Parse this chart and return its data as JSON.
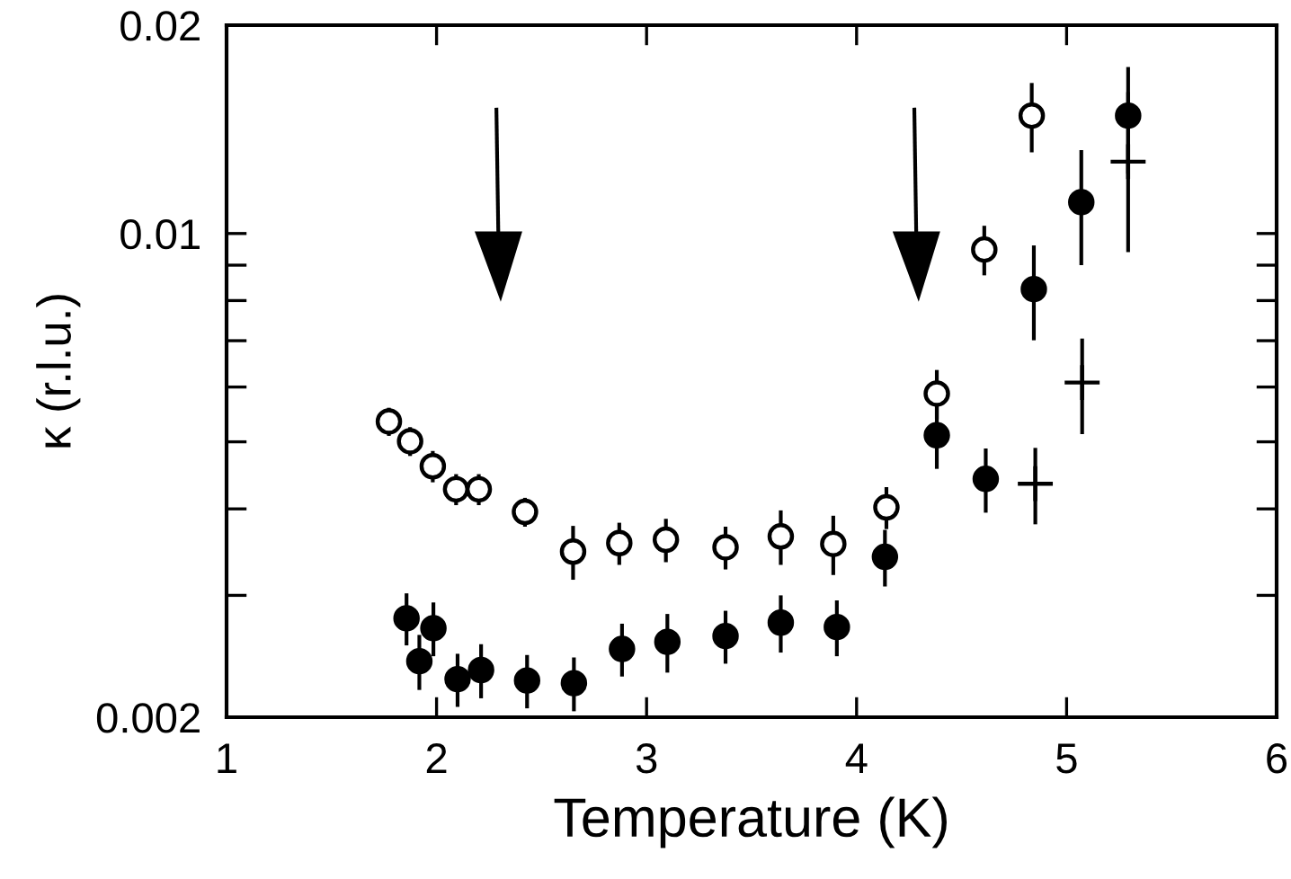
{
  "chart_data": {
    "type": "scatter",
    "xlabel": "Temperature (K)",
    "ylabel": "κ (r.l.u.)",
    "log": "y",
    "xlim": [
      1,
      6
    ],
    "xticks": [
      1,
      2,
      3,
      4,
      5,
      6
    ],
    "ylim": [
      0.002,
      0.02
    ],
    "yticks": [
      0.002,
      {
        "value": 0.003,
        "label": null
      },
      {
        "value": 0.004,
        "label": null
      },
      {
        "value": 0.005,
        "label": null
      },
      {
        "value": 0.006,
        "label": null
      },
      {
        "value": 0.007,
        "label": null
      },
      {
        "value": 0.008,
        "label": null
      },
      {
        "value": 0.009,
        "label": null
      },
      0.01,
      0.02
    ],
    "grid": false,
    "legend": false,
    "series": [
      {
        "color": "#ffffff",
        "marker": "circle",
        "x": [
          1.773,
          1.874,
          1.982,
          2.093,
          2.201,
          2.421,
          2.65,
          2.87,
          3.092,
          3.376,
          3.639,
          3.889,
          4.142,
          4.382,
          4.608,
          4.834
        ],
        "values": [
          0.00535,
          0.00501,
          0.00461,
          0.00427,
          0.00427,
          0.00396,
          0.00347,
          0.00357,
          0.00361,
          0.00352,
          0.00365,
          0.00356,
          0.00402,
          0.00587,
          0.00948,
          0.0148
        ],
        "errors": [
          0.00025,
          0.00024,
          0.00024,
          0.00022,
          0.00022,
          0.00019,
          0.00031,
          0.00025,
          0.00026,
          0.00025,
          0.00033,
          0.00035,
          0.00028,
          0.00048,
          0.00078,
          0.0017
        ]
      },
      {
        "color": "#000000",
        "marker": "circle",
        "x": [
          1.857,
          1.918,
          1.985,
          2.1,
          2.212,
          2.431,
          2.654,
          2.883,
          3.099,
          3.376,
          3.639,
          3.906,
          4.135,
          4.382,
          4.615,
          4.844,
          5.07,
          5.293
        ],
        "values": [
          0.00278,
          0.00241,
          0.00269,
          0.00227,
          0.00234,
          0.00226,
          0.00224,
          0.00251,
          0.00257,
          0.00262,
          0.00274,
          0.0027,
          0.00341,
          0.00511,
          0.00442,
          0.00831,
          0.0111,
          0.0148
        ],
        "errors": [
          0.00024,
          0.00022,
          0.00024,
          0.0002,
          0.00021,
          0.0002,
          0.0002,
          0.00022,
          0.00025,
          0.00023,
          0.00026,
          0.00025,
          0.00032,
          0.00054,
          0.00047,
          0.0013,
          0.0021,
          0.0026
        ]
      },
      {
        "color": "#000000",
        "marker": "cross",
        "x": [
          4.851,
          5.074,
          5.293
        ],
        "values": [
          0.00435,
          0.00609,
          0.0127
        ],
        "errors": [
          0.00055,
          0.00096,
          0.0033
        ]
      }
    ]
  }
}
